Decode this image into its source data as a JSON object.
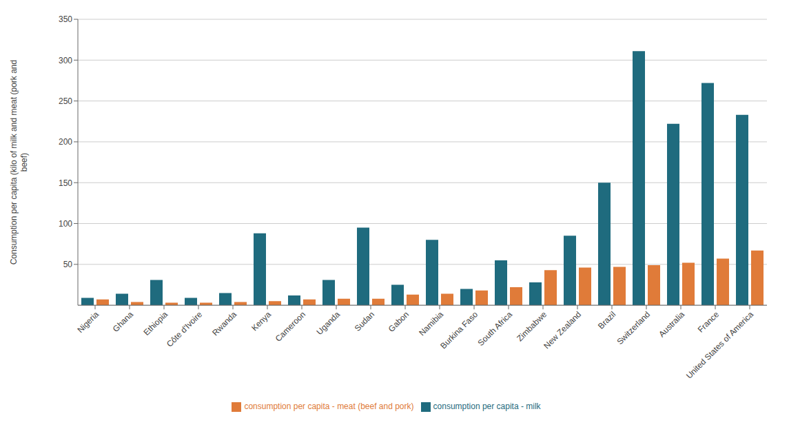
{
  "chart_data": {
    "type": "bar",
    "categories": [
      "Nigeria",
      "Ghana",
      "Ethiopia",
      "Côte d'Ivoire",
      "Rwanda",
      "Kenya",
      "Cameroon",
      "Uganda",
      "Sudan",
      "Gabon",
      "Namibia",
      "Burkina Faso",
      "South Africa",
      "Zimbabwe",
      "New Zealand",
      "Brazil",
      "Switzerland",
      "Australia",
      "France",
      "United States of America"
    ],
    "series": [
      {
        "name": "consumption per capita - milk",
        "color": "#1f6b7e",
        "values": [
          9,
          14,
          31,
          9,
          15,
          88,
          12,
          31,
          95,
          25,
          80,
          20,
          55,
          28,
          85,
          150,
          311,
          222,
          272,
          233
        ]
      },
      {
        "name": "consumption per capita - meat (beef and pork)",
        "color": "#e07b39",
        "values": [
          7,
          4,
          3,
          3,
          4,
          5,
          7,
          8,
          8,
          13,
          14,
          18,
          22,
          43,
          46,
          47,
          49,
          52,
          57,
          67
        ]
      }
    ],
    "ylabel": "Consumption per capita (kilo of milk and meat (pork and\nbeef)",
    "ylim": [
      0,
      350
    ],
    "yticks": [
      50,
      100,
      150,
      200,
      250,
      300,
      350
    ],
    "grid": true,
    "legend": "bottom"
  }
}
